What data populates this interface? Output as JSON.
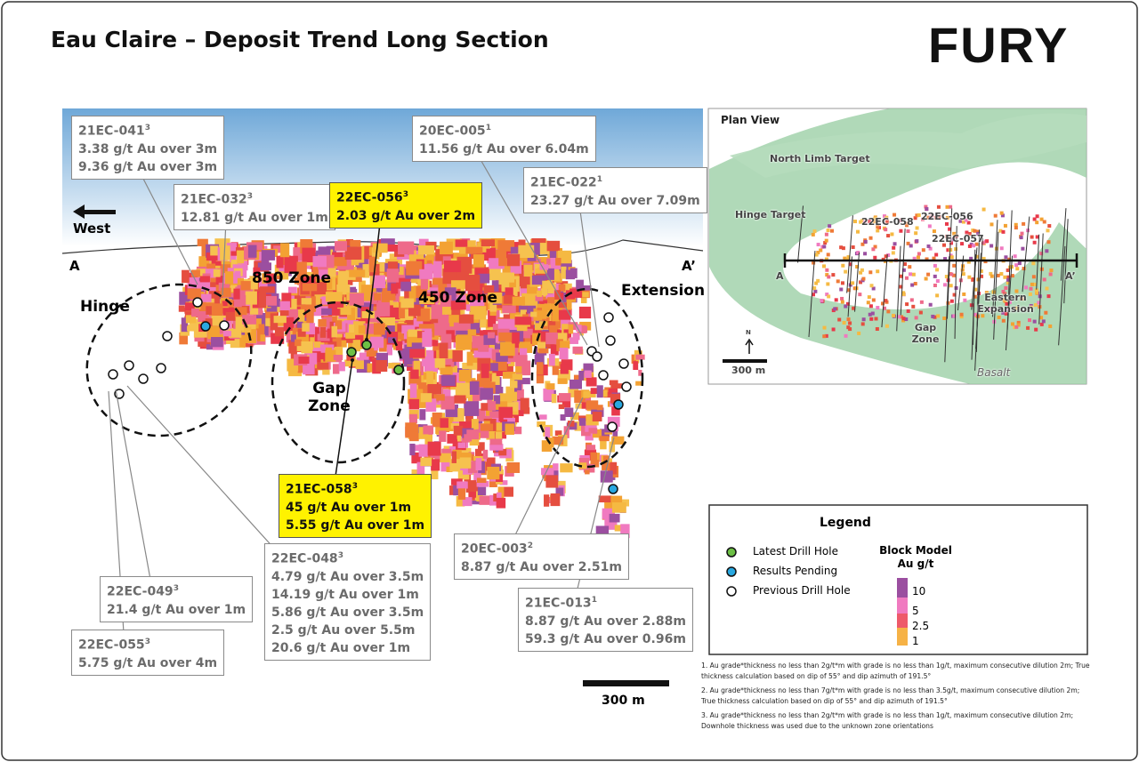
{
  "header": {
    "title": "Eau Claire – Deposit Trend Long Section",
    "logo": "FURY"
  },
  "long_section": {
    "direction": "West",
    "section_start": "A",
    "section_end": "A’",
    "zones": [
      "850 Zone",
      "450 Zone",
      "Hinge",
      "Gap Zone",
      "Extension"
    ],
    "scale_bar": "300 m"
  },
  "callouts": [
    {
      "id": "21EC-041",
      "note": "3",
      "results": [
        "3.38 g/t Au over 3m",
        "9.36 g/t Au over 3m"
      ]
    },
    {
      "id": "21EC-032",
      "note": "3",
      "results": [
        "12.81 g/t Au over 1m"
      ]
    },
    {
      "id": "22EC-056",
      "note": "3",
      "results": [
        "2.03 g/t Au over 2m"
      ]
    },
    {
      "id": "20EC-005",
      "note": "1",
      "results": [
        "11.56 g/t Au over 6.04m"
      ]
    },
    {
      "id": "21EC-022",
      "note": "1",
      "results": [
        "23.27 g/t Au over 7.09m"
      ]
    },
    {
      "id": "21EC-058",
      "note": "3",
      "results": [
        "45 g/t Au over 1m",
        "5.55 g/t Au over 1m"
      ]
    },
    {
      "id": "22EC-048",
      "note": "3",
      "results": [
        "4.79 g/t Au over 3.5m",
        "14.19 g/t Au over 1m",
        "5.86 g/t Au over 3.5m",
        "2.5 g/t Au over 5.5m",
        "20.6 g/t Au over 1m"
      ]
    },
    {
      "id": "22EC-049",
      "note": "3",
      "results": [
        "21.4 g/t Au over 1m"
      ]
    },
    {
      "id": "22EC-055",
      "note": "3",
      "results": [
        "5.75 g/t Au over 4m"
      ]
    },
    {
      "id": "20EC-003",
      "note": "2",
      "results": [
        "8.87 g/t Au over 2.51m"
      ]
    },
    {
      "id": "21EC-013",
      "note": "1",
      "results": [
        "8.87 g/t Au over 2.88m",
        "59.3 g/t Au over 0.96m"
      ]
    }
  ],
  "plan_view": {
    "title": "Plan View",
    "labels": [
      "North Limb Target",
      "Hinge Target",
      "22EC-058",
      "22EC-056",
      "22EC-057",
      "Eastern Expansion",
      "Gap Zone",
      "Basalt"
    ],
    "section_start": "A",
    "section_end": "A’",
    "north": "N",
    "scale_bar": "300 m"
  },
  "legend": {
    "title": "Legend",
    "items": [
      "Latest Drill Hole",
      "Results Pending",
      "Previous Drill Hole"
    ],
    "block_model_title": "Block Model Au g/t",
    "grades": [
      "10",
      "5",
      "2.5",
      "1"
    ]
  },
  "footnotes": [
    "1. Au grade*thickness no less than 2g/t*m with grade is no less than 1g/t, maximum consecutive dilution 2m; True thickness calculation based on dip of 55° and dip azimuth of 191.5°",
    "2. Au grade*thickness no less than 7g/t*m with grade is no less than 3.5g/t, maximum consecutive dilution 2m; True thickness calculation based on dip of 55° and dip azimuth of 191.5°",
    "3. Au grade*thickness no less than 2g/t*m with grade is no less than 1g/t, maximum consecutive dilution 2m; Downhole thickness was used due to the unknown zone orientations"
  ]
}
